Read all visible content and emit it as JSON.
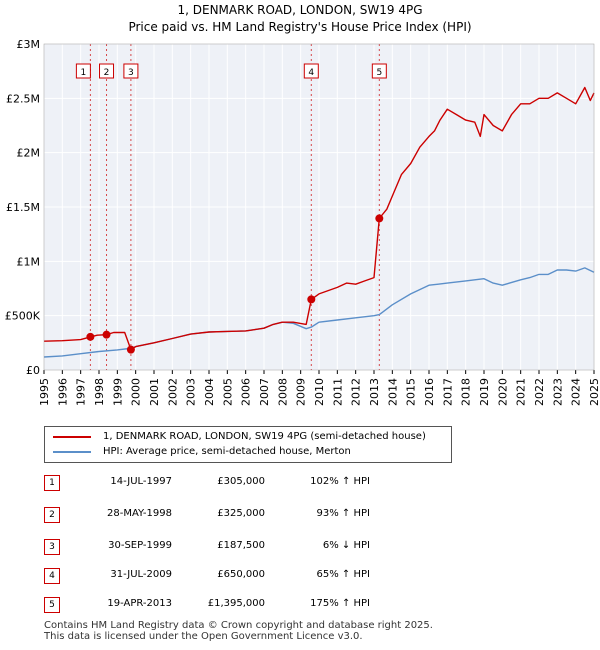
{
  "title_line1": "1, DENMARK ROAD, LONDON, SW19 4PG",
  "title_line2": "Price paid vs. HM Land Registry's House Price Index (HPI)",
  "colors": {
    "property": "#cc0000",
    "hpi": "#5b8fc9",
    "marker": "#cc0000"
  },
  "legend": {
    "property": "1, DENMARK ROAD, LONDON, SW19 4PG (semi-detached house)",
    "hpi": "HPI: Average price, semi-detached house, Merton"
  },
  "sales": [
    {
      "num": "1",
      "date": "14-JUL-1997",
      "price": "£305,000",
      "hpi": "102% ↑ HPI"
    },
    {
      "num": "2",
      "date": "28-MAY-1998",
      "price": "£325,000",
      "hpi": "93% ↑ HPI"
    },
    {
      "num": "3",
      "date": "30-SEP-1999",
      "price": "£187,500",
      "hpi": "6% ↓ HPI"
    },
    {
      "num": "4",
      "date": "31-JUL-2009",
      "price": "£650,000",
      "hpi": "65% ↑ HPI"
    },
    {
      "num": "5",
      "date": "19-APR-2013",
      "price": "£1,395,000",
      "hpi": "175% ↑ HPI"
    }
  ],
  "footer_line1": "Contains HM Land Registry data © Crown copyright and database right 2025.",
  "footer_line2": "This data is licensed under the Open Government Licence v3.0.",
  "chart_data": {
    "type": "line",
    "title": "1, DENMARK ROAD, LONDON, SW19 4PG",
    "subtitle": "Price paid vs. HM Land Registry's House Price Index (HPI)",
    "xlim": [
      1995,
      2025
    ],
    "ylim": [
      0,
      3000000
    ],
    "x_ticks": [
      "1995",
      "1996",
      "1997",
      "1998",
      "1999",
      "2000",
      "2001",
      "2002",
      "2003",
      "2004",
      "2005",
      "2006",
      "2007",
      "2008",
      "2009",
      "2010",
      "2011",
      "2012",
      "2013",
      "2014",
      "2015",
      "2016",
      "2017",
      "2018",
      "2019",
      "2020",
      "2021",
      "2022",
      "2023",
      "2024",
      "2025"
    ],
    "y_ticks": [
      {
        "value": 0,
        "label": "£0"
      },
      {
        "value": 500000,
        "label": "£500K"
      },
      {
        "value": 1000000,
        "label": "£1M"
      },
      {
        "value": 1500000,
        "label": "£1.5M"
      },
      {
        "value": 2000000,
        "label": "£2M"
      },
      {
        "value": 2500000,
        "label": "£2.5M"
      },
      {
        "value": 3000000,
        "label": "£3M"
      }
    ],
    "grid": true,
    "legend_position": "below",
    "series": [
      {
        "name": "1, DENMARK ROAD, LONDON, SW19 4PG (semi-detached house)",
        "x": [
          1995.0,
          1996.0,
          1997.0,
          1997.53,
          1997.9,
          1998.4,
          1998.8,
          1999.4,
          1999.74,
          2000.0,
          2001.0,
          2002.0,
          2003.0,
          2004.0,
          2005.0,
          2006.0,
          2007.0,
          2007.5,
          2008.0,
          2008.6,
          2009.3,
          2009.58,
          2010.0,
          2011.0,
          2011.5,
          2012.0,
          2012.5,
          2013.0,
          2013.29,
          2013.7,
          2014.0,
          2014.5,
          2015.0,
          2015.5,
          2016.0,
          2016.3,
          2016.6,
          2017.0,
          2017.5,
          2018.0,
          2018.5,
          2018.8,
          2019.0,
          2019.5,
          2020.0,
          2020.5,
          2021.0,
          2021.5,
          2022.0,
          2022.5,
          2023.0,
          2023.5,
          2024.0,
          2024.5,
          2024.8,
          2025.0
        ],
        "values": [
          265000,
          270000,
          280000,
          305000,
          320000,
          325000,
          345000,
          345000,
          187500,
          215000,
          250000,
          290000,
          330000,
          350000,
          355000,
          360000,
          385000,
          420000,
          440000,
          440000,
          420000,
          650000,
          700000,
          760000,
          800000,
          790000,
          820000,
          850000,
          1395000,
          1480000,
          1600000,
          1800000,
          1900000,
          2050000,
          2150000,
          2200000,
          2300000,
          2400000,
          2350000,
          2300000,
          2280000,
          2150000,
          2350000,
          2250000,
          2200000,
          2350000,
          2450000,
          2450000,
          2500000,
          2500000,
          2550000,
          2500000,
          2450000,
          2600000,
          2480000,
          2550000
        ]
      },
      {
        "name": "HPI: Average price, semi-detached house, Merton",
        "x": [
          1995.0,
          1996.0,
          1997.0,
          1998.0,
          1999.0,
          1999.74,
          2000.0,
          2001.0,
          2002.0,
          2003.0,
          2004.0,
          2005.0,
          2006.0,
          2007.0,
          2007.5,
          2008.0,
          2008.6,
          2009.3,
          2009.58,
          2010.0,
          2011.0,
          2012.0,
          2013.0,
          2013.29,
          2014.0,
          2015.0,
          2016.0,
          2016.5,
          2017.0,
          2018.0,
          2019.0,
          2019.5,
          2020.0,
          2021.0,
          2021.5,
          2022.0,
          2022.5,
          2023.0,
          2023.5,
          2024.0,
          2024.5,
          2025.0
        ],
        "values": [
          120000,
          130000,
          150000,
          170000,
          185000,
          200000,
          215000,
          250000,
          290000,
          330000,
          350000,
          355000,
          360000,
          385000,
          420000,
          440000,
          430000,
          380000,
          395000,
          440000,
          460000,
          480000,
          500000,
          510000,
          600000,
          700000,
          780000,
          790000,
          800000,
          820000,
          840000,
          800000,
          780000,
          830000,
          850000,
          880000,
          880000,
          920000,
          920000,
          910000,
          940000,
          900000
        ]
      }
    ],
    "sales": [
      {
        "label": "1",
        "x": 1997.53,
        "y": 305000
      },
      {
        "label": "2",
        "x": 1998.41,
        "y": 325000
      },
      {
        "label": "3",
        "x": 1999.74,
        "y": 187500
      },
      {
        "label": "4",
        "x": 2009.58,
        "y": 650000
      },
      {
        "label": "5",
        "x": 2013.29,
        "y": 1395000
      }
    ]
  }
}
